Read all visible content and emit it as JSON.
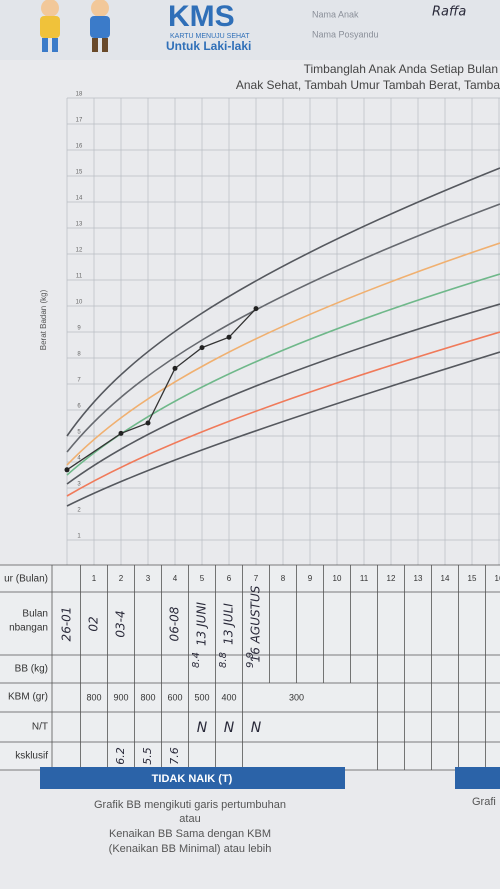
{
  "header": {
    "logo": "KMS",
    "logo_subtitle": "KARTU MENUJU SEHAT",
    "target": "Untuk Laki-laki",
    "fields": [
      "Nama Anak",
      "Nama Posyandu"
    ],
    "child_name": "Raffa"
  },
  "chart": {
    "title": "Timbanglah Anak Anda Setiap Bulan",
    "subtitle": "Anak Sehat, Tambah Umur Tambah Berat, Tamba",
    "y_label": "Berat Badan (kg)",
    "yticks": [
      1,
      2,
      3,
      4,
      5,
      6,
      7,
      8,
      9,
      10,
      11,
      12,
      13,
      14,
      15,
      16,
      17,
      18
    ],
    "plotted_points": [
      {
        "month": 0,
        "kg": 3.7
      },
      {
        "month": 2,
        "kg": 5.1
      },
      {
        "month": 3,
        "kg": 5.5
      },
      {
        "month": 4,
        "kg": 7.6
      },
      {
        "month": 5,
        "kg": 8.4
      },
      {
        "month": 6,
        "kg": 8.8
      },
      {
        "month": 7,
        "kg": 9.9
      }
    ]
  },
  "table": {
    "row_labels": [
      "ur (Bulan)",
      "Bulan",
      "nbangan",
      "BB (kg)",
      "KBM (gr)",
      "N/T",
      "ksklusif"
    ],
    "months": [
      1,
      2,
      3,
      4,
      5,
      6,
      7,
      8,
      9,
      10,
      11,
      12,
      13,
      14,
      15,
      16
    ],
    "kbm": [
      "800",
      "900",
      "800",
      "600",
      "500",
      "400",
      "300"
    ],
    "dates_handwritten": [
      "26-01",
      "02",
      "03-4",
      "06-08",
      "13 JUNI",
      "13 JULI",
      "16 AGUSTUS"
    ],
    "bb_handwritten": [
      "8.4",
      "8.8",
      "9.9"
    ],
    "nt_handwritten": [
      "N",
      "N",
      "N"
    ],
    "eksklusif_handwritten": [
      "6.2",
      "5.5",
      "7.6"
    ]
  },
  "footer": {
    "heading": "TIDAK NAIK (T)",
    "lines": [
      "Grafik BB mengikuti garis pertumbuhan",
      "atau",
      "Kenaikan BB Sama dengan KBM",
      "(Kenaikan BB Minimal) atau lebih"
    ],
    "right_text": "Grafi"
  }
}
